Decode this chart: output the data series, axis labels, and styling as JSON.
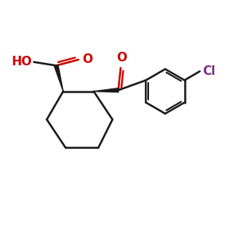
{
  "background_color": "#ffffff",
  "bond_color": "#1a1a1a",
  "bond_width": 1.8,
  "ho_color": "#cc0000",
  "o_color": "#cc0000",
  "cl_color": "#7b2d8b",
  "figsize": [
    3.0,
    3.0
  ],
  "dpi": 100,
  "xlim": [
    0,
    10
  ],
  "ylim": [
    0,
    10
  ]
}
